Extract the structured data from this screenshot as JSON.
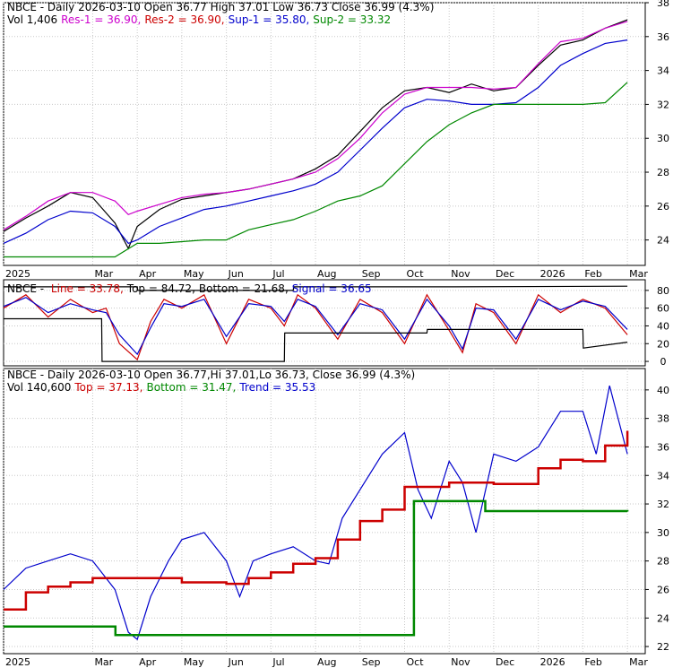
{
  "chart_data": [
    {
      "type": "line",
      "panel": "price",
      "header": [
        {
          "text": "NBCE - Daily 2026-03-10 Open 36.77  High 37.01  Low 36.73  Close 36.99 (4.3%)",
          "color": "#000000"
        }
      ],
      "header2": [
        {
          "text": "Vol 1,406",
          "color": "#000000"
        },
        {
          "text": "Res-1 = 36.90,",
          "color": "#cc00cc"
        },
        {
          "text": "Res-2 = 36.90,",
          "color": "#cc0000"
        },
        {
          "text": "Sup-1 = 35.80,",
          "color": "#0000cc"
        },
        {
          "text": "Sup-2 = 33.32",
          "color": "#008800"
        }
      ],
      "ylim": [
        22.5,
        38
      ],
      "yticks": [
        24,
        26,
        28,
        30,
        32,
        34,
        36,
        38
      ],
      "x_labels": [
        "2025",
        "Mar",
        "Apr",
        "May",
        "Jun",
        "Jul",
        "Aug",
        "Sep",
        "Oct",
        "Nov",
        "Dec",
        "2026",
        "Feb",
        "Mar"
      ],
      "x_label_pos": [
        0,
        2,
        3,
        4,
        5,
        6,
        7,
        8,
        9,
        10,
        11,
        12,
        13,
        14
      ],
      "series": [
        {
          "color": "#000000",
          "x": [
            0,
            0.5,
            1,
            1.5,
            2,
            2.5,
            2.8,
            3,
            3.5,
            4,
            4.5,
            5,
            5.5,
            6,
            6.5,
            7,
            7.5,
            8,
            8.5,
            9,
            9.5,
            10,
            10.5,
            11,
            11.5,
            12,
            12.5,
            13,
            13.5,
            14
          ],
          "y": [
            24.5,
            25.3,
            26.0,
            26.8,
            26.5,
            25.0,
            23.5,
            24.8,
            25.8,
            26.4,
            26.6,
            26.8,
            27.0,
            27.3,
            27.6,
            28.2,
            29.0,
            30.4,
            31.8,
            32.8,
            33.0,
            32.7,
            33.2,
            32.8,
            33.0,
            34.3,
            35.5,
            35.8,
            36.5,
            36.99
          ]
        },
        {
          "color": "#cc00cc",
          "x": [
            0,
            0.5,
            1,
            1.5,
            2,
            2.5,
            2.8,
            3,
            3.5,
            4,
            4.5,
            5,
            5.5,
            6,
            6.5,
            7,
            7.5,
            8,
            8.5,
            9,
            9.5,
            10,
            10.5,
            11,
            11.5,
            12,
            12.5,
            13,
            13.5,
            14
          ],
          "y": [
            24.6,
            25.4,
            26.3,
            26.8,
            26.8,
            26.3,
            25.5,
            25.7,
            26.1,
            26.5,
            26.7,
            26.8,
            27.0,
            27.3,
            27.6,
            28.0,
            28.8,
            30.0,
            31.5,
            32.6,
            33.0,
            33.0,
            33.0,
            32.9,
            33.0,
            34.4,
            35.7,
            35.9,
            36.5,
            36.9
          ]
        },
        {
          "color": "#0000cc",
          "x": [
            0,
            0.5,
            1,
            1.5,
            2,
            2.5,
            2.8,
            3,
            3.5,
            4,
            4.5,
            5,
            5.5,
            6,
            6.5,
            7,
            7.5,
            8,
            8.5,
            9,
            9.5,
            10,
            10.5,
            11,
            11.5,
            12,
            12.5,
            13,
            13.5,
            14
          ],
          "y": [
            23.8,
            24.4,
            25.2,
            25.7,
            25.6,
            24.8,
            23.8,
            24.0,
            24.8,
            25.3,
            25.8,
            26.0,
            26.3,
            26.6,
            26.9,
            27.3,
            28.0,
            29.3,
            30.6,
            31.8,
            32.3,
            32.2,
            32.0,
            32.0,
            32.1,
            33.0,
            34.3,
            35.0,
            35.6,
            35.8
          ]
        },
        {
          "color": "#008800",
          "x": [
            0,
            0.5,
            1,
            1.5,
            2,
            2.5,
            3,
            3.5,
            4,
            4.5,
            5,
            5.5,
            6,
            6.5,
            7,
            7.5,
            8,
            8.5,
            9,
            9.5,
            10,
            10.5,
            11,
            11.5,
            12,
            12.5,
            13,
            13.5,
            14
          ],
          "y": [
            23.0,
            23.0,
            23.0,
            23.0,
            23.0,
            23.0,
            23.8,
            23.8,
            23.9,
            24.0,
            24.0,
            24.6,
            24.9,
            25.2,
            25.7,
            26.3,
            26.6,
            27.2,
            28.5,
            29.8,
            30.8,
            31.5,
            32.0,
            32.0,
            32.0,
            32.0,
            32.0,
            32.1,
            33.3
          ]
        }
      ]
    },
    {
      "type": "line",
      "panel": "oscillator",
      "header": [
        {
          "text": "NBCE - ",
          "color": "#000000"
        },
        {
          "text": "Line = 33.78,",
          "color": "#cc0000"
        },
        {
          "text": "Top = 84.72,",
          "color": "#000000"
        },
        {
          "text": "Bottom = 21.68,",
          "color": "#000000"
        },
        {
          "text": "Signal = 36.65",
          "color": "#0000cc"
        }
      ],
      "ylim": [
        -5,
        92
      ],
      "yticks": [
        0,
        20,
        40,
        60,
        80
      ],
      "series": [
        {
          "color": "#cc0000",
          "x": [
            0,
            0.5,
            1,
            1.5,
            2,
            2.3,
            2.6,
            3,
            3.3,
            3.6,
            4,
            4.5,
            5,
            5.5,
            6,
            6.3,
            6.6,
            7,
            7.5,
            8,
            8.5,
            9,
            9.5,
            10,
            10.3,
            10.6,
            11,
            11.5,
            12,
            12.5,
            13,
            13.5,
            14
          ],
          "y": [
            60,
            75,
            50,
            70,
            55,
            60,
            20,
            2,
            45,
            70,
            60,
            75,
            20,
            70,
            60,
            40,
            75,
            60,
            25,
            70,
            55,
            20,
            75,
            35,
            10,
            65,
            55,
            20,
            75,
            55,
            70,
            60,
            30
          ]
        },
        {
          "color": "#0000cc",
          "x": [
            0,
            0.5,
            1,
            1.5,
            2,
            2.3,
            2.6,
            3,
            3.3,
            3.6,
            4,
            4.5,
            5,
            5.5,
            6,
            6.3,
            6.6,
            7,
            7.5,
            8,
            8.5,
            9,
            9.5,
            10,
            10.3,
            10.6,
            11,
            11.5,
            12,
            12.5,
            13,
            13.5,
            14
          ],
          "y": [
            62,
            72,
            55,
            65,
            58,
            55,
            30,
            8,
            38,
            65,
            62,
            70,
            28,
            65,
            62,
            45,
            70,
            62,
            30,
            65,
            58,
            25,
            70,
            40,
            14,
            60,
            58,
            25,
            70,
            58,
            68,
            62,
            36
          ]
        },
        {
          "color": "#000000",
          "x": [
            0,
            3,
            3.01,
            6.5,
            6.51,
            10,
            10.01,
            14
          ],
          "y": [
            84,
            84,
            80,
            80,
            84,
            84,
            84,
            84.7
          ]
        },
        {
          "color": "#000000",
          "x": [
            0,
            2.2,
            2.21,
            6.3,
            6.31,
            9.5,
            9.51,
            13,
            13.01,
            14
          ],
          "y": [
            48,
            48,
            0,
            0,
            32,
            32,
            36,
            36,
            15,
            21.7
          ]
        }
      ]
    },
    {
      "type": "line",
      "panel": "trend",
      "header": [
        {
          "text": "NBCE - Daily 2026-03-10 Open 36.77,Hi 37.01,Lo 36.73, Close 36.99 (4.3%)",
          "color": "#000000"
        }
      ],
      "header2": [
        {
          "text": "Vol 140,600",
          "color": "#000000"
        },
        {
          "text": "Top = 37.13,",
          "color": "#cc0000"
        },
        {
          "text": "Bottom = 31.47,",
          "color": "#008800"
        },
        {
          "text": "Trend = 35.53",
          "color": "#0000cc"
        }
      ],
      "ylim": [
        21.5,
        41.5
      ],
      "yticks": [
        22,
        24,
        26,
        28,
        30,
        32,
        34,
        36,
        38,
        40
      ],
      "x_labels": [
        "2025",
        "Mar",
        "Apr",
        "May",
        "Jun",
        "Jul",
        "Aug",
        "Sep",
        "Oct",
        "Nov",
        "Dec",
        "2026",
        "Feb",
        "Mar"
      ],
      "x_label_pos": [
        0,
        2,
        3,
        4,
        5,
        6,
        7,
        8,
        9,
        10,
        11,
        12,
        13,
        14
      ],
      "series": [
        {
          "color": "#0000cc",
          "x": [
            0,
            0.5,
            1,
            1.5,
            2,
            2.5,
            2.8,
            3,
            3.3,
            3.7,
            4,
            4.5,
            5,
            5.3,
            5.6,
            6,
            6.5,
            7,
            7.3,
            7.6,
            8,
            8.5,
            9,
            9.3,
            9.6,
            10,
            10.3,
            10.6,
            11,
            11.5,
            12,
            12.5,
            13,
            13.3,
            13.6,
            14
          ],
          "y": [
            26,
            27.5,
            28,
            28.5,
            28,
            26,
            23,
            22.5,
            25.5,
            28,
            29.5,
            30,
            28,
            25.5,
            28,
            28.5,
            29,
            28,
            27.8,
            31,
            33,
            35.5,
            37,
            33,
            31,
            35,
            33.5,
            30,
            35.5,
            35,
            36,
            38.5,
            38.5,
            35.5,
            40.3,
            35.5
          ]
        },
        {
          "color": "#cc0000",
          "step": true,
          "x": [
            0,
            0.5,
            1,
            1.5,
            2,
            2.5,
            3,
            3.5,
            4,
            4.5,
            5,
            5.5,
            6,
            6.5,
            7,
            7.5,
            8,
            8.5,
            9,
            9.5,
            10,
            10.5,
            11,
            11.5,
            12,
            12.5,
            13,
            13.5,
            14
          ],
          "y": [
            24.6,
            25.8,
            26.2,
            26.5,
            26.8,
            26.8,
            26.8,
            26.8,
            26.5,
            26.5,
            26.4,
            26.8,
            27.2,
            27.8,
            28.2,
            29.5,
            30.8,
            31.6,
            33.2,
            33.2,
            33.5,
            33.5,
            33.4,
            33.4,
            34.5,
            35.1,
            35.0,
            36.1,
            37.13
          ]
        },
        {
          "color": "#008800",
          "step": true,
          "x": [
            0,
            2.5,
            2.51,
            9.2,
            9.21,
            10.8,
            10.81,
            14
          ],
          "y": [
            23.4,
            23.4,
            22.8,
            22.8,
            32.2,
            32.2,
            31.5,
            31.47
          ]
        }
      ]
    }
  ]
}
